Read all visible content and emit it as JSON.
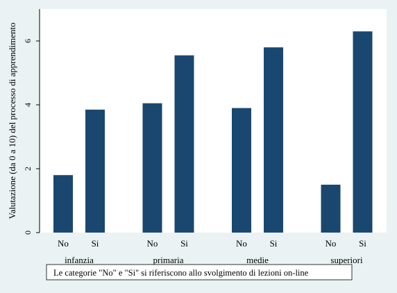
{
  "chart_data": {
    "type": "bar",
    "ylabel": "Valutazione (da 0 a 10) del processo di apprendimento",
    "ylim": [
      0,
      7
    ],
    "yticks": [
      0,
      2,
      4,
      6
    ],
    "grid": false,
    "groups": [
      "infanzia",
      "primaria",
      "medie",
      "superiori"
    ],
    "bar_labels": [
      "No",
      "Si"
    ],
    "values": {
      "No": [
        1.8,
        4.05,
        3.9,
        1.5
      ],
      "Si": [
        3.85,
        5.55,
        5.8,
        6.3
      ]
    },
    "bar_color": "#1a476f",
    "plot_background": "#ffffff",
    "page_background": "#eaf2f3",
    "note": "Le categorie \"No\" e \"Si\" si riferiscono allo svolgimento di lezioni on-line"
  }
}
